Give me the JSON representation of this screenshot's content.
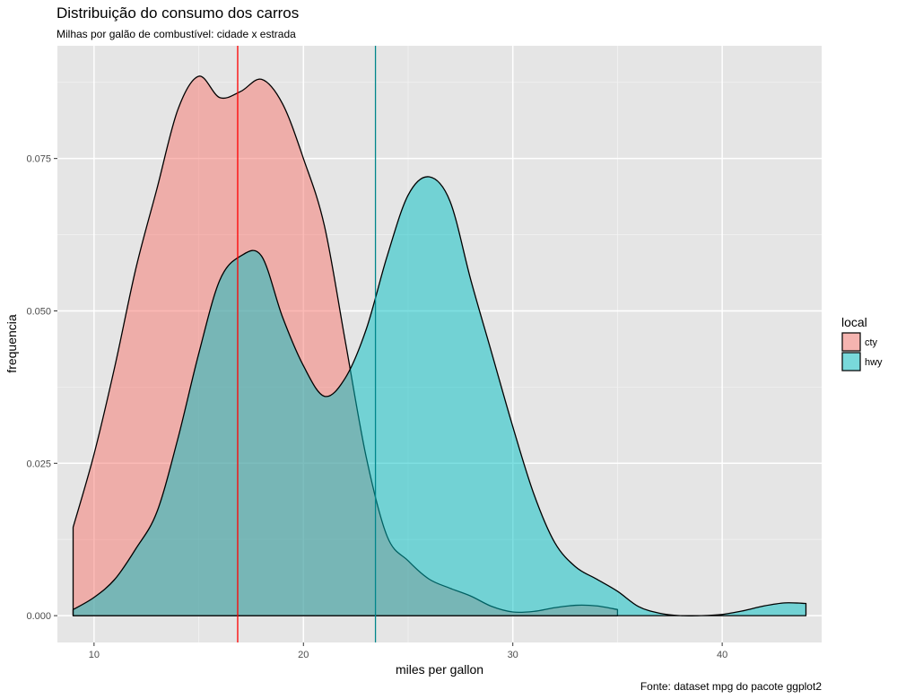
{
  "chart_data": {
    "type": "area",
    "title": "Distribuição do consumo dos carros",
    "subtitle": "Milhas por galão de combustível: cidade x estrada",
    "xlabel": "miles per gallon",
    "ylabel": "frequencia",
    "caption": "Fonte: dataset mpg do pacote ggplot2",
    "xlim": [
      8.25,
      44.75
    ],
    "ylim": [
      -0.0044,
      0.0935
    ],
    "x_ticks": [
      10,
      20,
      30,
      40
    ],
    "y_ticks": [
      0,
      0.025,
      0.05,
      0.075
    ],
    "y_tick_labels": [
      "0.000",
      "0.025",
      "0.050",
      "0.075"
    ],
    "grid": true,
    "panel_background": "#E5E5E5",
    "legend": {
      "title": "local",
      "position": "right",
      "entries": [
        {
          "label": "cty",
          "color": "#F8766D"
        },
        {
          "label": "hwy",
          "color": "#00BFC4"
        }
      ]
    },
    "series": [
      {
        "name": "cty",
        "fill": "#F8766D",
        "x": [
          9,
          10,
          11,
          12,
          13,
          14,
          15,
          16,
          17,
          18,
          19,
          20,
          21,
          22,
          23,
          24,
          25,
          26,
          27,
          28,
          29,
          30,
          31,
          32,
          33,
          34,
          35
        ],
        "y": [
          0.0145,
          0.0265,
          0.041,
          0.057,
          0.07,
          0.083,
          0.0885,
          0.085,
          0.086,
          0.088,
          0.084,
          0.075,
          0.064,
          0.045,
          0.026,
          0.013,
          0.009,
          0.006,
          0.0045,
          0.0032,
          0.0015,
          0.0006,
          0.0007,
          0.0013,
          0.0017,
          0.0016,
          0.001
        ]
      },
      {
        "name": "hwy",
        "fill": "#00BFC4",
        "x": [
          9,
          10,
          11,
          12,
          13,
          14,
          15,
          16,
          17,
          18,
          19,
          20,
          21,
          22,
          23,
          24,
          25,
          26,
          27,
          28,
          29,
          30,
          31,
          32,
          33,
          34,
          35,
          36,
          37,
          38,
          39,
          40,
          41,
          42,
          43,
          44
        ],
        "y": [
          0.001,
          0.003,
          0.006,
          0.011,
          0.017,
          0.029,
          0.043,
          0.055,
          0.059,
          0.059,
          0.049,
          0.041,
          0.036,
          0.039,
          0.047,
          0.059,
          0.069,
          0.072,
          0.068,
          0.055,
          0.043,
          0.031,
          0.02,
          0.012,
          0.008,
          0.006,
          0.004,
          0.0015,
          0.0004,
          0.0,
          0.0,
          0.0002,
          0.0008,
          0.0016,
          0.0021,
          0.002
        ]
      }
    ],
    "vlines": [
      {
        "x": 16.86,
        "color": "#FF0000",
        "series": "cty"
      },
      {
        "x": 23.44,
        "color": "#00868B",
        "series": "hwy"
      }
    ]
  }
}
